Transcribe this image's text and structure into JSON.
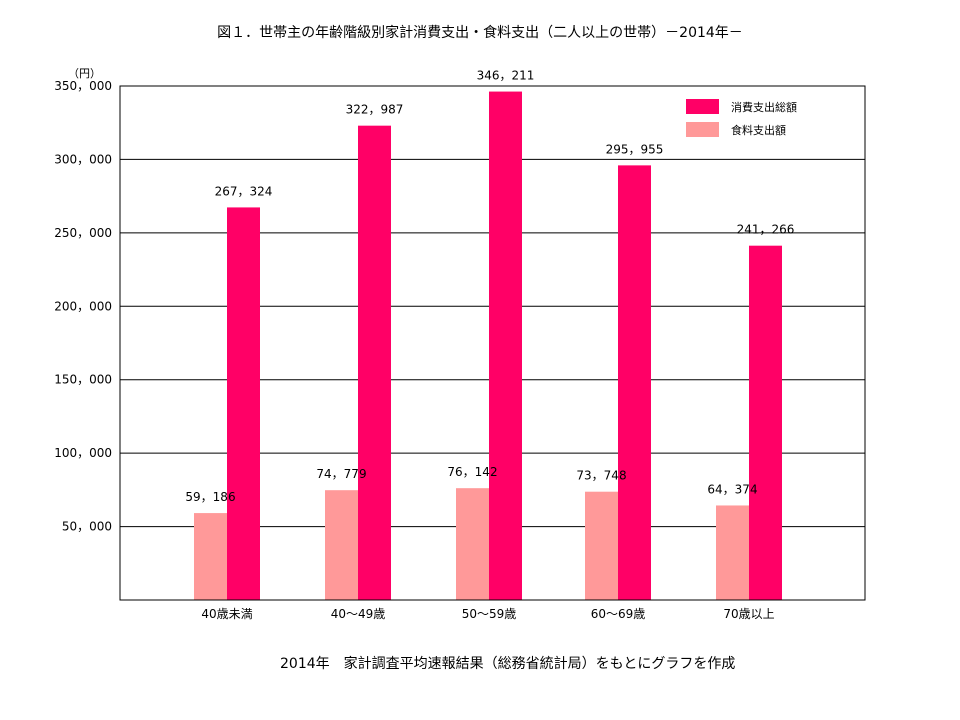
{
  "chart_data": {
    "type": "bar",
    "title": "図１．世帯主の年齢階級別家計消費支出・食料支出（二人以上の世帯）－2014年－",
    "unit": "（円）",
    "categories": [
      "40歳未満",
      "40～49歳",
      "50～59歳",
      "60～69歳",
      "70歳以上"
    ],
    "series": [
      {
        "name": "食料支出額",
        "color": "#ff9999",
        "values": [
          59186,
          74779,
          76142,
          73748,
          64374
        ],
        "labels": [
          "59，186",
          "74，779",
          "76，142",
          "73，748",
          "64，374"
        ]
      },
      {
        "name": "消費支出総額",
        "color": "#ff0066",
        "values": [
          267324,
          322987,
          346211,
          295955,
          241266
        ],
        "labels": [
          "267，324",
          "322，987",
          "346，211",
          "295，955",
          "241，266"
        ]
      }
    ],
    "ylim": [
      0,
      350000
    ],
    "yticks": [
      50000,
      100000,
      150000,
      200000,
      250000,
      300000,
      350000
    ],
    "ytick_labels": [
      "50，000",
      "100，000",
      "150，000",
      "200，000",
      "250，000",
      "300，000",
      "350，000"
    ],
    "grid": true,
    "legend_position": "top-right"
  },
  "source_note": "2014年　家計調査平均速報結果（総務省統計局）をもとにグラフを作成"
}
